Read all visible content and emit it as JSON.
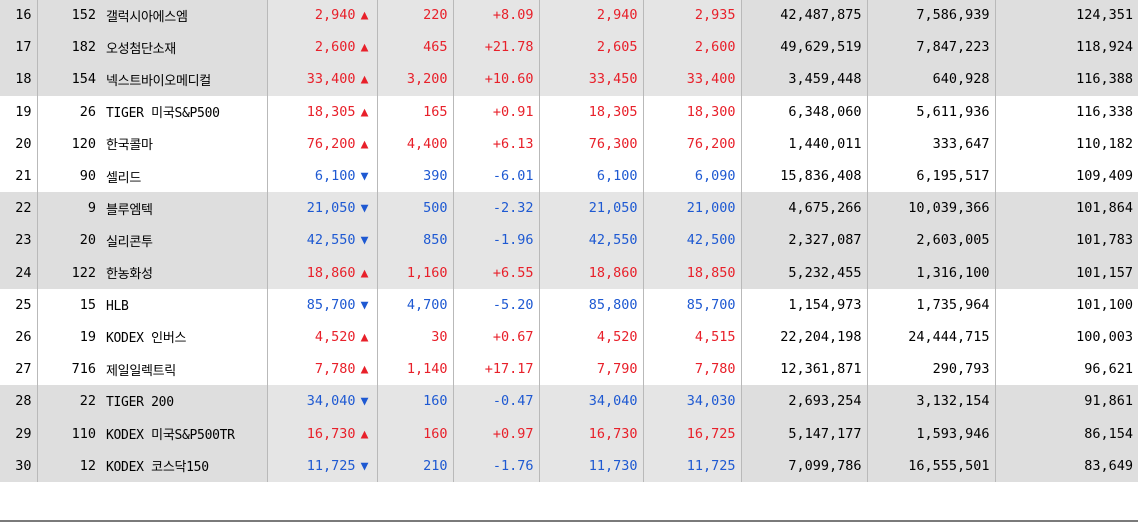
{
  "rows": [
    {
      "rank": "16",
      "prev": "152",
      "name": "갤럭시아에스엠",
      "price": "2,940",
      "dir": "up",
      "change": "220",
      "rate": "+8.09",
      "open": "2,940",
      "high": "2,935",
      "volume": "42,487,875",
      "c9": "7,586,939",
      "c10": "124,351"
    },
    {
      "rank": "17",
      "prev": "182",
      "name": "오성첨단소재",
      "price": "2,600",
      "dir": "up",
      "change": "465",
      "rate": "+21.78",
      "open": "2,605",
      "high": "2,600",
      "volume": "49,629,519",
      "c9": "7,847,223",
      "c10": "118,924"
    },
    {
      "rank": "18",
      "prev": "154",
      "name": "넥스트바이오메디컬",
      "price": "33,400",
      "dir": "up",
      "change": "3,200",
      "rate": "+10.60",
      "open": "33,450",
      "high": "33,400",
      "volume": "3,459,448",
      "c9": "640,928",
      "c10": "116,388"
    },
    {
      "rank": "19",
      "prev": "26",
      "name": "TIGER 미국S&P500",
      "price": "18,305",
      "dir": "up",
      "change": "165",
      "rate": "+0.91",
      "open": "18,305",
      "high": "18,300",
      "volume": "6,348,060",
      "c9": "5,611,936",
      "c10": "116,338"
    },
    {
      "rank": "20",
      "prev": "120",
      "name": "한국콜마",
      "price": "76,200",
      "dir": "up",
      "change": "4,400",
      "rate": "+6.13",
      "open": "76,300",
      "high": "76,200",
      "volume": "1,440,011",
      "c9": "333,647",
      "c10": "110,182"
    },
    {
      "rank": "21",
      "prev": "90",
      "name": "셀리드",
      "price": "6,100",
      "dir": "down",
      "change": "390",
      "rate": "-6.01",
      "open": "6,100",
      "high": "6,090",
      "volume": "15,836,408",
      "c9": "6,195,517",
      "c10": "109,409"
    },
    {
      "rank": "22",
      "prev": "9",
      "name": "블루엠텍",
      "price": "21,050",
      "dir": "down",
      "change": "500",
      "rate": "-2.32",
      "open": "21,050",
      "high": "21,000",
      "volume": "4,675,266",
      "c9": "10,039,366",
      "c10": "101,864"
    },
    {
      "rank": "23",
      "prev": "20",
      "name": "실리콘투",
      "price": "42,550",
      "dir": "down",
      "change": "850",
      "rate": "-1.96",
      "open": "42,550",
      "high": "42,500",
      "volume": "2,327,087",
      "c9": "2,603,005",
      "c10": "101,783"
    },
    {
      "rank": "24",
      "prev": "122",
      "name": "한농화성",
      "price": "18,860",
      "dir": "up",
      "change": "1,160",
      "rate": "+6.55",
      "open": "18,860",
      "high": "18,850",
      "volume": "5,232,455",
      "c9": "1,316,100",
      "c10": "101,157"
    },
    {
      "rank": "25",
      "prev": "15",
      "name": "HLB",
      "price": "85,700",
      "dir": "down",
      "change": "4,700",
      "rate": "-5.20",
      "open": "85,800",
      "high": "85,700",
      "volume": "1,154,973",
      "c9": "1,735,964",
      "c10": "101,100"
    },
    {
      "rank": "26",
      "prev": "19",
      "name": "KODEX 인버스",
      "price": "4,520",
      "dir": "up",
      "change": "30",
      "rate": "+0.67",
      "open": "4,520",
      "high": "4,515",
      "volume": "22,204,198",
      "c9": "24,444,715",
      "c10": "100,003"
    },
    {
      "rank": "27",
      "prev": "716",
      "name": "제일일렉트릭",
      "price": "7,780",
      "dir": "up",
      "change": "1,140",
      "rate": "+17.17",
      "open": "7,790",
      "high": "7,780",
      "volume": "12,361,871",
      "c9": "290,793",
      "c10": "96,621"
    },
    {
      "rank": "28",
      "prev": "22",
      "name": "TIGER 200",
      "price": "34,040",
      "dir": "down",
      "change": "160",
      "rate": "-0.47",
      "open": "34,040",
      "high": "34,030",
      "volume": "2,693,254",
      "c9": "3,132,154",
      "c10": "91,861"
    },
    {
      "rank": "29",
      "prev": "110",
      "name": "KODEX 미국S&P500TR",
      "price": "16,730",
      "dir": "up",
      "change": "160",
      "rate": "+0.97",
      "open": "16,730",
      "high": "16,725",
      "volume": "5,147,177",
      "c9": "1,593,946",
      "c10": "86,154"
    },
    {
      "rank": "30",
      "prev": "12",
      "name": "KODEX 코스닥150",
      "price": "11,725",
      "dir": "down",
      "change": "210",
      "rate": "-1.76",
      "open": "11,730",
      "high": "11,725",
      "volume": "7,099,786",
      "c9": "16,555,501",
      "c10": "83,649"
    }
  ],
  "symbols": {
    "up": "▲",
    "down": "▼"
  },
  "colors": {
    "up": "#e8202a",
    "down": "#1e59d2",
    "band": "#dedede",
    "grid": "#b9b9b9"
  },
  "icons": {
    "up": "triangle-up-icon",
    "down": "triangle-down-icon"
  }
}
